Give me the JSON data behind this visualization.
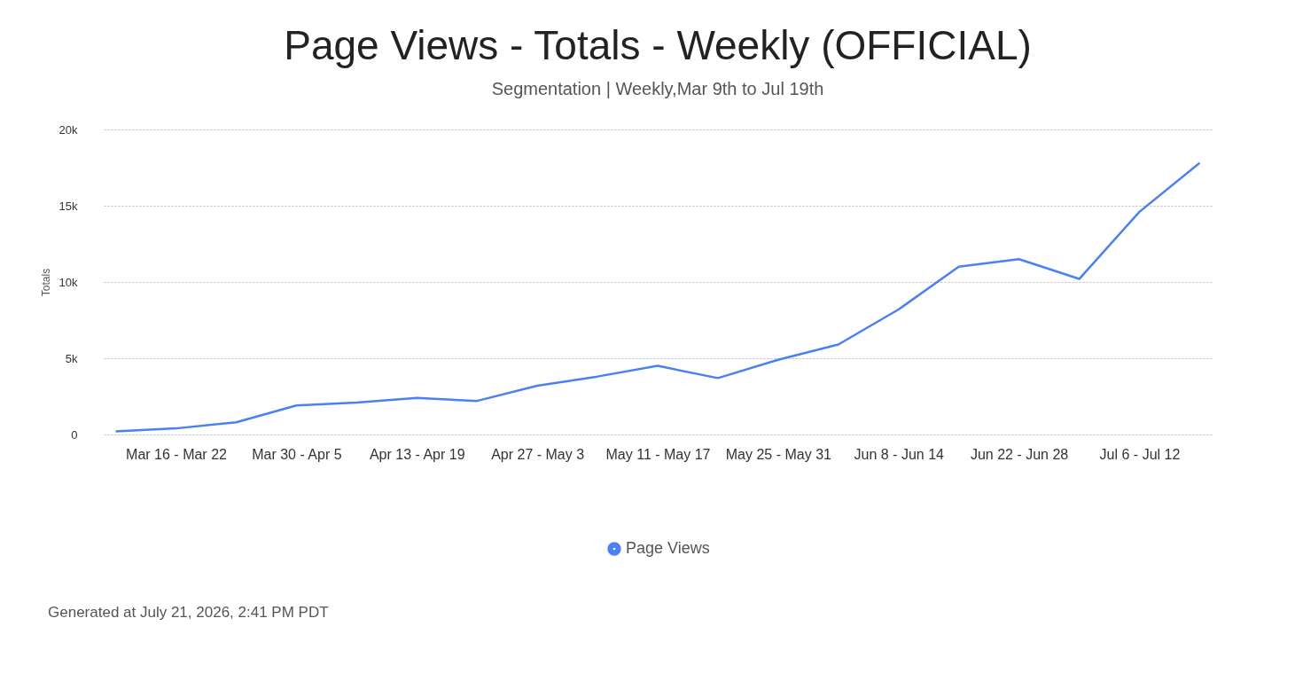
{
  "chart_data": {
    "type": "line",
    "title": "Page Views - Totals - Weekly (OFFICIAL)",
    "subtitle": "Segmentation | Weekly,Mar 9th to Jul 19th",
    "ylabel": "Totals",
    "categories": [
      null,
      "Mar 16 - Mar 22",
      null,
      "Mar 30 - Apr 5",
      null,
      "Apr 13 - Apr 19",
      null,
      "Apr 27 - May 3",
      null,
      "May 11 - May 17",
      null,
      "May 25 - May 31",
      null,
      "Jun 8 - Jun 14",
      null,
      "Jun 22 - Jun 28",
      null,
      "Jul 6 - Jul 12",
      null
    ],
    "series": [
      {
        "name": "Page Views",
        "color": "#4a80f5",
        "values": [
          200,
          400,
          800,
          1900,
          2100,
          2400,
          2200,
          3200,
          3800,
          4500,
          3700,
          4900,
          5900,
          8200,
          11000,
          11500,
          10200,
          14600,
          17800
        ]
      }
    ],
    "ylim": [
      0,
      20000
    ],
    "yticks": [
      0,
      {
        "value": 5000,
        "label": "5k"
      },
      {
        "value": 10000,
        "label": "10k"
      },
      {
        "value": 15000,
        "label": "15k"
      },
      {
        "value": 20000,
        "label": "20k"
      }
    ],
    "grid": "y",
    "legend": "bottom",
    "marker": "none",
    "line_style": "solid",
    "annotations": [
      "Generated at July 21, 2026, 2:41 PM PDT"
    ]
  }
}
